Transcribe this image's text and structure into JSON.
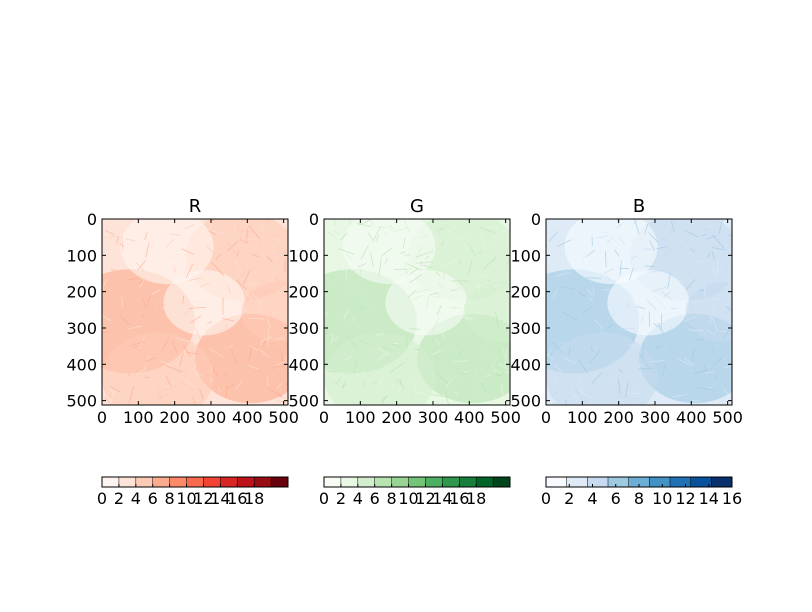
{
  "chart_data": [
    {
      "type": "heatmap",
      "title": "R",
      "colormap": "Reds",
      "x_ticks": [
        "0",
        "100",
        "200",
        "300",
        "400",
        "500"
      ],
      "y_ticks": [
        "0",
        "100",
        "200",
        "300",
        "400",
        "500"
      ],
      "xlim": [
        0,
        512
      ],
      "ylim": [
        512,
        0
      ],
      "value_range": [
        0,
        18
      ],
      "colorbar": {
        "orientation": "horizontal",
        "colors": [
          "#fff5f0",
          "#fee4d8",
          "#fdcab5",
          "#fcab8f",
          "#fc8a6a",
          "#f96a4d",
          "#f14432",
          "#d92523",
          "#bc141a",
          "#980c13",
          "#67000d"
        ],
        "ticks": [
          "0",
          "2",
          "4",
          "6",
          "8",
          "10",
          "12",
          "14",
          "16",
          "18"
        ]
      }
    },
    {
      "type": "heatmap",
      "title": "G",
      "colormap": "Greens",
      "x_ticks": [
        "0",
        "100",
        "200",
        "300",
        "400",
        "500"
      ],
      "y_ticks": [
        "0",
        "100",
        "200",
        "300",
        "400",
        "500"
      ],
      "xlim": [
        0,
        512
      ],
      "ylim": [
        512,
        0
      ],
      "value_range": [
        0,
        18
      ],
      "colorbar": {
        "orientation": "horizontal",
        "colors": [
          "#f7fcf5",
          "#e9f7e5",
          "#d3eecd",
          "#b8e3b2",
          "#98d594",
          "#73c476",
          "#4bb062",
          "#2f974e",
          "#157f3b",
          "#006428",
          "#00441b"
        ],
        "ticks": [
          "0",
          "2",
          "4",
          "6",
          "8",
          "10",
          "12",
          "14",
          "16",
          "18"
        ]
      }
    },
    {
      "type": "heatmap",
      "title": "B",
      "colormap": "Blues",
      "x_ticks": [
        "0",
        "100",
        "200",
        "300",
        "400",
        "500"
      ],
      "y_ticks": [
        "0",
        "100",
        "200",
        "300",
        "400",
        "500"
      ],
      "xlim": [
        0,
        512
      ],
      "ylim": [
        512,
        0
      ],
      "value_range": [
        0,
        16
      ],
      "colorbar": {
        "orientation": "horizontal",
        "colors": [
          "#f7fbff",
          "#deebf7",
          "#c6dbef",
          "#9ecae1",
          "#6baed6",
          "#4292c6",
          "#2171b5",
          "#08519c",
          "#08306b"
        ],
        "ticks": [
          "0",
          "2",
          "4",
          "6",
          "8",
          "10",
          "12",
          "14",
          "16"
        ]
      }
    }
  ]
}
